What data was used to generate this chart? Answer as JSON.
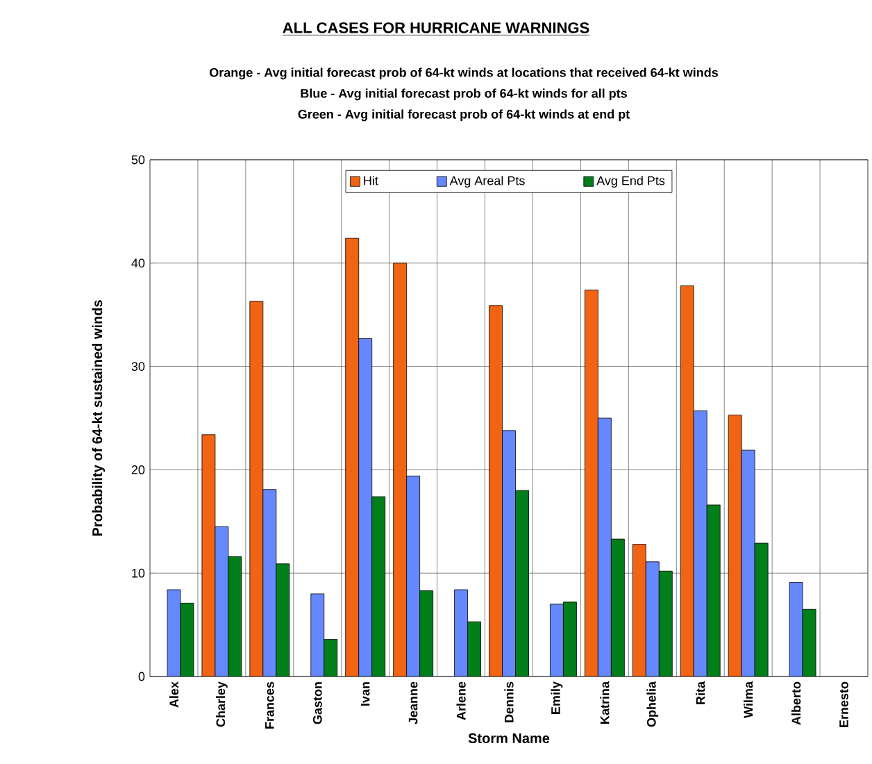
{
  "chart_data": {
    "type": "bar",
    "title": "ALL CASES FOR HURRICANE WARNINGS",
    "annotations": [
      "Orange - Avg initial forecast prob of 64-kt winds at locations that received 64-kt winds",
      "Blue - Avg initial forecast prob of 64-kt winds for all pts",
      "Green   - Avg initial forecast prob of 64-kt winds at end pt"
    ],
    "xlabel": "Storm Name",
    "ylabel": "Probability of 64-kt sustained winds",
    "categories": [
      "Alex",
      "Charley",
      "Frances",
      "Gaston",
      "Ivan",
      "Jeanne",
      "Arlene",
      "Dennis",
      "Emily",
      "Katrina",
      "Ophelia",
      "Rita",
      "Wilma",
      "Alberto",
      "Ernesto"
    ],
    "series": [
      {
        "name": "Hit",
        "color": "#f06414",
        "values": [
          null,
          23.4,
          36.3,
          null,
          42.4,
          40.0,
          null,
          35.9,
          null,
          37.4,
          12.8,
          37.8,
          25.3,
          null,
          null
        ]
      },
      {
        "name": "Avg Areal Pts",
        "color": "#6688ff",
        "values": [
          8.4,
          14.5,
          18.1,
          8.0,
          32.7,
          19.4,
          8.4,
          23.8,
          7.0,
          25.0,
          11.1,
          25.7,
          21.9,
          9.1,
          null
        ]
      },
      {
        "name": "Avg End Pts",
        "color": "#007f1a",
        "values": [
          7.1,
          11.6,
          10.9,
          3.6,
          17.4,
          8.3,
          5.3,
          18.0,
          7.2,
          13.3,
          10.2,
          16.6,
          12.9,
          6.5,
          null
        ]
      }
    ],
    "ylim": [
      0,
      50
    ],
    "yticks": [
      0,
      10,
      20,
      30,
      40,
      50
    ],
    "grid": true,
    "legend": "top"
  }
}
